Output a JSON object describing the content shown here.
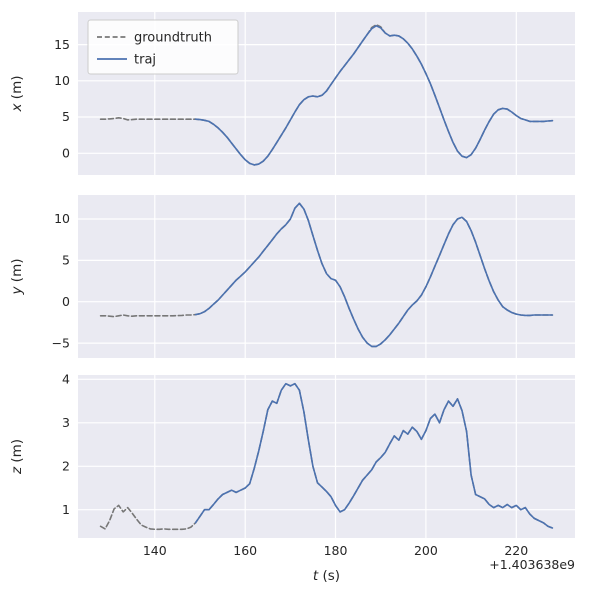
{
  "figure": {
    "offset_text": "+1.403638e9",
    "xlabel": {
      "var": "t",
      "unit": " (s)"
    },
    "x_ticks": [
      140,
      160,
      180,
      200,
      220
    ],
    "x_lim": [
      123,
      233
    ],
    "colors": {
      "axes_bg": "#eaeaf2",
      "grid": "#ffffff",
      "text": "#262626",
      "traj": "#4c72b0",
      "groundtruth": "#777777",
      "legend_border": "#cccccc"
    },
    "legend": {
      "position": "upper-left",
      "entries": [
        {
          "label": "groundtruth",
          "style": "dashed",
          "color": "#777777"
        },
        {
          "label": "traj",
          "style": "solid",
          "color": "#4c72b0"
        }
      ]
    }
  },
  "chart_data": [
    {
      "type": "line",
      "id": "x",
      "ylabel_var": "x",
      "ylabel_unit": " (m)",
      "yticks": [
        0,
        5,
        10,
        15
      ],
      "ylim": [
        -3.0,
        19.5
      ],
      "grid": true,
      "series": [
        {
          "name": "groundtruth",
          "style": "dashed",
          "color": "#777777",
          "t_start": 128,
          "t_step": 1,
          "values": [
            4.7,
            4.7,
            4.75,
            4.8,
            4.9,
            4.8,
            4.6,
            4.65,
            4.7,
            4.7,
            4.7,
            4.7,
            4.7,
            4.7,
            4.7,
            4.7,
            4.7,
            4.7,
            4.7,
            4.7,
            4.7,
            4.7,
            4.65,
            4.55,
            4.4,
            4.0,
            3.5,
            2.9,
            2.2,
            1.4,
            0.6,
            -0.2,
            -0.9,
            -1.4,
            -1.6,
            -1.5,
            -1.1,
            -0.4,
            0.5,
            1.5,
            2.5,
            3.5,
            4.6,
            5.7,
            6.7,
            7.4,
            7.8,
            7.9,
            7.8,
            8.0,
            8.6,
            9.5,
            10.4,
            11.3,
            12.1,
            12.9,
            13.7,
            14.6,
            15.5,
            16.4,
            17.35,
            17.75,
            17.45,
            16.6,
            16.2,
            16.3,
            16.2,
            15.8,
            15.2,
            14.4,
            13.4,
            12.3,
            11.0,
            9.6,
            8.0,
            6.3,
            4.6,
            3.0,
            1.5,
            0.3,
            -0.4,
            -0.6,
            -0.2,
            0.7,
            1.9,
            3.2,
            4.4,
            5.4,
            6.0,
            6.2,
            6.1,
            5.7,
            5.2,
            4.8,
            4.6,
            4.4,
            4.4,
            4.4,
            4.4,
            4.45,
            4.5
          ]
        },
        {
          "name": "traj",
          "style": "solid",
          "color": "#4c72b0",
          "t_start": 149,
          "t_step": 1,
          "values": [
            4.7,
            4.65,
            4.55,
            4.4,
            4.0,
            3.5,
            2.9,
            2.2,
            1.4,
            0.6,
            -0.2,
            -0.9,
            -1.4,
            -1.6,
            -1.5,
            -1.1,
            -0.4,
            0.5,
            1.5,
            2.5,
            3.5,
            4.6,
            5.7,
            6.7,
            7.4,
            7.8,
            7.9,
            7.8,
            8.0,
            8.6,
            9.5,
            10.4,
            11.3,
            12.1,
            12.9,
            13.7,
            14.6,
            15.5,
            16.4,
            17.2,
            17.6,
            17.3,
            16.6,
            16.2,
            16.3,
            16.2,
            15.8,
            15.2,
            14.4,
            13.4,
            12.3,
            11.0,
            9.6,
            8.0,
            6.3,
            4.6,
            3.0,
            1.5,
            0.3,
            -0.4,
            -0.6,
            -0.2,
            0.7,
            1.9,
            3.2,
            4.4,
            5.4,
            6.0,
            6.2,
            6.1,
            5.7,
            5.2,
            4.8,
            4.6,
            4.4,
            4.4,
            4.4,
            4.4,
            4.45,
            4.5
          ]
        }
      ]
    },
    {
      "type": "line",
      "id": "y",
      "ylabel_var": "y",
      "ylabel_unit": " (m)",
      "yticks": [
        -5,
        0,
        5,
        10
      ],
      "ylim": [
        -6.8,
        12.9
      ],
      "grid": true,
      "series": [
        {
          "name": "groundtruth",
          "style": "dashed",
          "color": "#777777",
          "t_start": 128,
          "t_step": 1,
          "values": [
            -1.7,
            -1.7,
            -1.75,
            -1.8,
            -1.7,
            -1.6,
            -1.7,
            -1.75,
            -1.7,
            -1.7,
            -1.7,
            -1.7,
            -1.7,
            -1.7,
            -1.7,
            -1.7,
            -1.7,
            -1.68,
            -1.65,
            -1.6,
            -1.6,
            -1.55,
            -1.45,
            -1.2,
            -0.8,
            -0.3,
            0.2,
            0.8,
            1.4,
            2.0,
            2.6,
            3.1,
            3.6,
            4.2,
            4.8,
            5.4,
            6.1,
            6.8,
            7.5,
            8.2,
            8.8,
            9.3,
            10.0,
            11.3,
            11.9,
            11.2,
            9.8,
            8.0,
            6.2,
            4.6,
            3.4,
            2.8,
            2.6,
            1.8,
            0.6,
            -0.8,
            -2.1,
            -3.3,
            -4.3,
            -5.0,
            -5.4,
            -5.4,
            -5.1,
            -4.6,
            -4.0,
            -3.3,
            -2.6,
            -1.8,
            -1.0,
            -0.4,
            0.1,
            0.8,
            1.8,
            3.0,
            4.3,
            5.6,
            6.9,
            8.2,
            9.3,
            10.0,
            10.2,
            9.7,
            8.6,
            7.2,
            5.6,
            4.0,
            2.5,
            1.2,
            0.2,
            -0.6,
            -1.0,
            -1.3,
            -1.5,
            -1.6,
            -1.65,
            -1.65,
            -1.6,
            -1.6,
            -1.6,
            -1.6,
            -1.6
          ]
        },
        {
          "name": "traj",
          "style": "solid",
          "color": "#4c72b0",
          "t_start": 149,
          "t_step": 1,
          "values": [
            -1.55,
            -1.45,
            -1.2,
            -0.8,
            -0.3,
            0.2,
            0.8,
            1.4,
            2.0,
            2.6,
            3.1,
            3.6,
            4.2,
            4.8,
            5.4,
            6.1,
            6.8,
            7.5,
            8.2,
            8.8,
            9.3,
            10.0,
            11.3,
            11.9,
            11.2,
            9.8,
            8.0,
            6.2,
            4.6,
            3.4,
            2.8,
            2.6,
            1.8,
            0.6,
            -0.8,
            -2.1,
            -3.3,
            -4.3,
            -5.0,
            -5.4,
            -5.4,
            -5.1,
            -4.6,
            -4.0,
            -3.3,
            -2.6,
            -1.8,
            -1.0,
            -0.4,
            0.1,
            0.8,
            1.8,
            3.0,
            4.3,
            5.6,
            6.9,
            8.2,
            9.3,
            10.0,
            10.2,
            9.7,
            8.6,
            7.2,
            5.6,
            4.0,
            2.5,
            1.2,
            0.2,
            -0.6,
            -1.0,
            -1.3,
            -1.5,
            -1.6,
            -1.65,
            -1.65,
            -1.6,
            -1.6,
            -1.6,
            -1.6,
            -1.6
          ]
        }
      ]
    },
    {
      "type": "line",
      "id": "z",
      "ylabel_var": "z",
      "ylabel_unit": " (m)",
      "yticks": [
        1,
        2,
        3,
        4
      ],
      "ylim": [
        0.35,
        4.1
      ],
      "grid": true,
      "series": [
        {
          "name": "groundtruth",
          "style": "dashed",
          "color": "#777777",
          "t_start": 128,
          "t_step": 1,
          "values": [
            0.62,
            0.56,
            0.75,
            1.02,
            1.1,
            0.95,
            1.05,
            0.92,
            0.78,
            0.65,
            0.6,
            0.56,
            0.55,
            0.55,
            0.56,
            0.55,
            0.55,
            0.55,
            0.55,
            0.56,
            0.6,
            0.7,
            0.85,
            1.0,
            1.0,
            1.12,
            1.25,
            1.35,
            1.4,
            1.45,
            1.4,
            1.45,
            1.5,
            1.6,
            1.95,
            2.35,
            2.8,
            3.3,
            3.5,
            3.45,
            3.75,
            3.9,
            3.85,
            3.9,
            3.75,
            3.25,
            2.6,
            2.0,
            1.62,
            1.52,
            1.42,
            1.3,
            1.1,
            0.95,
            1.0,
            1.15,
            1.32,
            1.5,
            1.68,
            1.8,
            1.92,
            2.1,
            2.2,
            2.32,
            2.52,
            2.7,
            2.6,
            2.82,
            2.74,
            2.9,
            2.8,
            2.62,
            2.82,
            3.1,
            3.2,
            3.0,
            3.3,
            3.5,
            3.38,
            3.55,
            3.28,
            2.8,
            1.8,
            1.35,
            1.3,
            1.25,
            1.12,
            1.05,
            1.1,
            1.05,
            1.12,
            1.05,
            1.1,
            1.0,
            1.05,
            0.9,
            0.8,
            0.75,
            0.7,
            0.62,
            0.58
          ]
        },
        {
          "name": "traj",
          "style": "solid",
          "color": "#4c72b0",
          "t_start": 149,
          "t_step": 1,
          "values": [
            0.7,
            0.85,
            1.0,
            1.0,
            1.12,
            1.25,
            1.35,
            1.4,
            1.45,
            1.4,
            1.45,
            1.5,
            1.6,
            1.95,
            2.35,
            2.8,
            3.3,
            3.5,
            3.45,
            3.75,
            3.9,
            3.85,
            3.9,
            3.75,
            3.25,
            2.6,
            2.0,
            1.62,
            1.52,
            1.42,
            1.3,
            1.1,
            0.95,
            1.0,
            1.15,
            1.32,
            1.5,
            1.68,
            1.8,
            1.92,
            2.1,
            2.2,
            2.32,
            2.52,
            2.7,
            2.6,
            2.82,
            2.74,
            2.9,
            2.8,
            2.62,
            2.82,
            3.1,
            3.2,
            3.0,
            3.3,
            3.5,
            3.38,
            3.55,
            3.28,
            2.8,
            1.8,
            1.35,
            1.3,
            1.25,
            1.12,
            1.05,
            1.1,
            1.05,
            1.12,
            1.05,
            1.1,
            1.0,
            1.05,
            0.9,
            0.8,
            0.75,
            0.7,
            0.62,
            0.58
          ]
        }
      ]
    }
  ]
}
